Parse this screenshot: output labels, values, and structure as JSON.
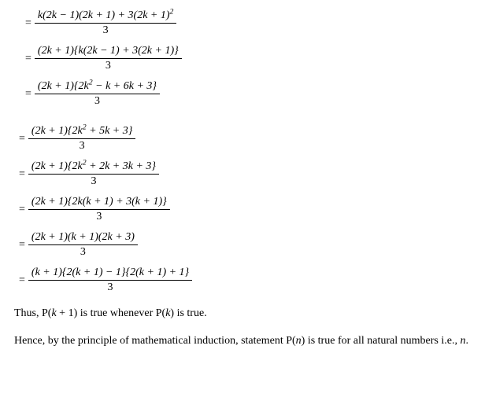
{
  "math": {
    "text_color": "#000000",
    "background_color": "#ffffff",
    "font_family": "Times New Roman",
    "font_size_pt": 11,
    "equals": "=",
    "denominator": "3",
    "lines": [
      {
        "indent": 14,
        "num": "k(2k − 1)(2k + 1) + 3(2k + 1)<span class=\"sup\">2</span>"
      },
      {
        "indent": 14,
        "num": "(2k + 1){k(2k − 1) + 3(2k + 1)}"
      },
      {
        "indent": 14,
        "num": "(2k + 1){2k<span class=\"sup\">2</span> − k + 6k + 3}",
        "extra_gap": true
      },
      {
        "indent": 6,
        "num": "(2k + 1){2k<span class=\"sup\">2</span> + 5k + 3}"
      },
      {
        "indent": 6,
        "num": "(2k + 1){2k<span class=\"sup\">2</span> + 2k + 3k + 3}"
      },
      {
        "indent": 6,
        "num": "(2k + 1){2k(k + 1) + 3(k + 1)}"
      },
      {
        "indent": 6,
        "num": "(2k + 1)(k + 1)(2k + 3)"
      },
      {
        "indent": 6,
        "num": "(k + 1){2(k + 1) − 1}{2(k + 1) + 1}"
      }
    ]
  },
  "text": {
    "conclusion1_pre": "Thus, P(",
    "conclusion1_mid1": " + 1) is true whenever P(",
    "conclusion1_post": ") is true.",
    "conclusion2_pre": "Hence, by the principle of mathematical induction, statement P(",
    "conclusion2_mid": ") is true for all natural numbers i.e., ",
    "conclusion2_post": ".",
    "k": "k",
    "n": "n"
  }
}
